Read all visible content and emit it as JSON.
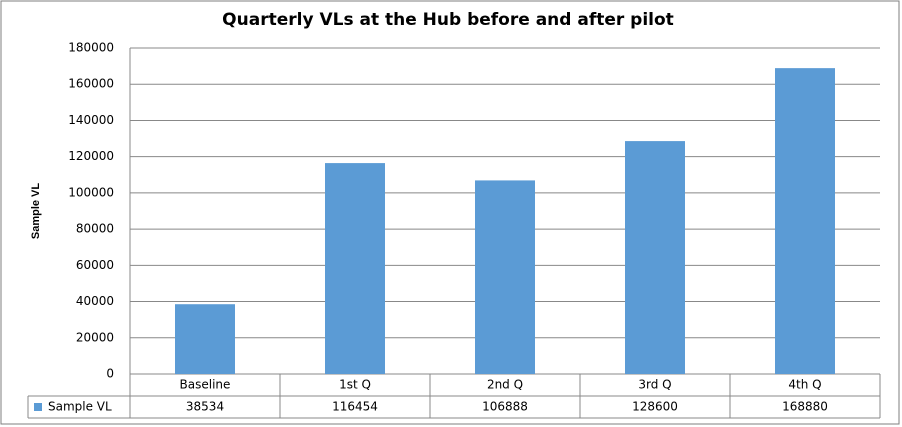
{
  "chart_data": {
    "type": "bar",
    "title": "Quarterly VLs at the Hub before and after pilot",
    "y_label": "Sample VL",
    "categories": [
      "Baseline",
      "1st Q",
      "2nd Q",
      "3rd Q",
      "4th Q"
    ],
    "series": [
      {
        "name": "Sample VL",
        "color": "#5b9bd5",
        "values": [
          38534,
          116454,
          106888,
          128600,
          168880
        ]
      }
    ],
    "ylim": [
      0,
      180000
    ],
    "yticks": [
      0,
      20000,
      40000,
      60000,
      80000,
      100000,
      120000,
      140000,
      160000,
      180000
    ],
    "grid": true,
    "data_table": true
  }
}
